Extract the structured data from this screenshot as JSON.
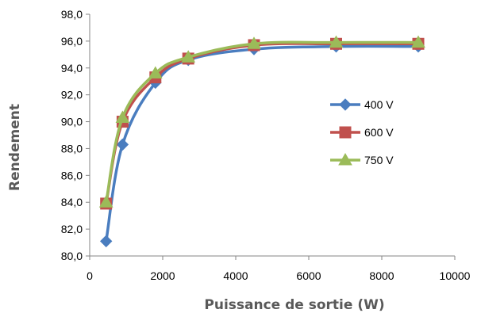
{
  "chart_data": {
    "type": "line",
    "xlabel": "Puissance de sortie (W)",
    "ylabel": "Rendement",
    "xlim": [
      0,
      10000
    ],
    "ylim": [
      80,
      98
    ],
    "x_ticks": [
      "0",
      "2000",
      "4000",
      "6000",
      "8000",
      "10000"
    ],
    "y_ticks": [
      "80,0",
      "82,0",
      "84,0",
      "86,0",
      "88,0",
      "90,0",
      "92,0",
      "94,0",
      "96,0",
      "98,0"
    ],
    "x_tick_values": [
      0,
      2000,
      4000,
      6000,
      8000,
      10000
    ],
    "y_tick_values": [
      80,
      82,
      84,
      86,
      88,
      90,
      92,
      94,
      96,
      98
    ],
    "grid": false,
    "legend_position": "right",
    "series": [
      {
        "name": "400 V",
        "color": "#4a7dbf",
        "marker": "diamond",
        "x": [
          450,
          900,
          1800,
          2700,
          4500,
          6750,
          9000
        ],
        "y": [
          81.1,
          88.3,
          92.9,
          94.6,
          95.4,
          95.6,
          95.6
        ]
      },
      {
        "name": "600 V",
        "color": "#c0504d",
        "marker": "square",
        "x": [
          450,
          900,
          1800,
          2700,
          4500,
          6750,
          9000
        ],
        "y": [
          83.9,
          90.0,
          93.3,
          94.7,
          95.7,
          95.8,
          95.8
        ]
      },
      {
        "name": "750 V",
        "color": "#9bbb59",
        "marker": "triangle",
        "x": [
          450,
          900,
          1800,
          2700,
          4500,
          6750,
          9000
        ],
        "y": [
          84.0,
          90.3,
          93.6,
          94.8,
          95.8,
          95.9,
          95.9
        ]
      }
    ]
  }
}
